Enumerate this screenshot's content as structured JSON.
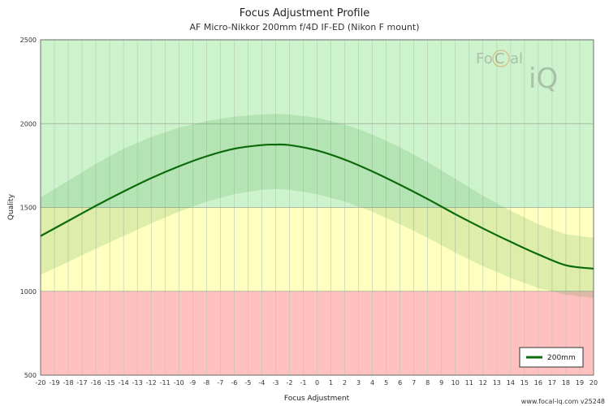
{
  "chart_data": {
    "type": "line",
    "title": "Focus Adjustment Profile",
    "subtitle": "AF Micro-Nikkor 200mm f/4D IF-ED (Nikon F mount)",
    "xlabel": "Focus Adjustment",
    "ylabel": "Quality",
    "xlim": [
      -20,
      20
    ],
    "ylim": [
      500,
      2500
    ],
    "xticks": [
      "-20",
      "-19",
      "-18",
      "-17",
      "-16",
      "-15",
      "-14",
      "-13",
      "-12",
      "-11",
      "-10",
      "-9",
      "-8",
      "-7",
      "-6",
      "-5",
      "-4",
      "-3",
      "-2",
      "-1",
      "0",
      "1",
      "2",
      "3",
      "4",
      "5",
      "6",
      "7",
      "8",
      "9",
      "10",
      "11",
      "12",
      "13",
      "14",
      "15",
      "16",
      "17",
      "18",
      "19",
      "20"
    ],
    "yticks": [
      "500",
      "1000",
      "1500",
      "2000",
      "2500"
    ],
    "bands": [
      {
        "from": 500,
        "to": 1000,
        "color": "#ffc0c0"
      },
      {
        "from": 1000,
        "to": 1500,
        "color": "#ffffc0"
      },
      {
        "from": 1500,
        "to": 2500,
        "color": "#cdf3cd"
      }
    ],
    "series": [
      {
        "name": "200mm",
        "color": "#0b6b0b",
        "x": [
          -20,
          -18,
          -16,
          -14,
          -12,
          -10,
          -8,
          -6,
          -4,
          -3,
          -2,
          0,
          2,
          4,
          6,
          8,
          10,
          12,
          14,
          16,
          18,
          20
        ],
        "y": [
          1330,
          1420,
          1510,
          1595,
          1675,
          1745,
          1805,
          1850,
          1872,
          1875,
          1872,
          1840,
          1785,
          1715,
          1635,
          1550,
          1460,
          1375,
          1295,
          1220,
          1155,
          1135
        ],
        "band_upper": [
          1560,
          1660,
          1760,
          1850,
          1920,
          1975,
          2015,
          2042,
          2055,
          2058,
          2055,
          2035,
          1995,
          1935,
          1860,
          1770,
          1670,
          1570,
          1480,
          1400,
          1340,
          1320
        ],
        "band_lower": [
          1100,
          1175,
          1255,
          1330,
          1405,
          1475,
          1535,
          1580,
          1605,
          1610,
          1605,
          1580,
          1535,
          1475,
          1400,
          1320,
          1230,
          1150,
          1080,
          1020,
          980,
          960
        ]
      }
    ],
    "legend": "bottom-right",
    "grid": true
  },
  "logo": {
    "text_a": "Fo",
    "text_b": "C",
    "text_c": "al",
    "text_d": "iQ"
  },
  "footer": "www.focal-iq.com  v25248"
}
